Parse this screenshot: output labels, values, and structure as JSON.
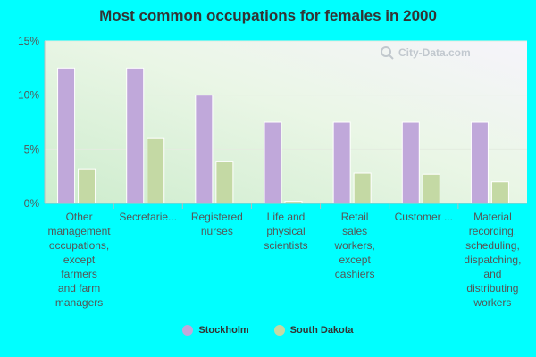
{
  "chart_data": {
    "type": "bar",
    "title": "Most common occupations for females in 2000",
    "categories": [
      "Other management occupations, except farmers and farm managers",
      "Secretarie...",
      "Registered nurses",
      "Life and physical scientists",
      "Retail sales workers, except cashiers",
      "Customer ...",
      "Material recording, scheduling, dispatching, and distributing workers"
    ],
    "category_lines": [
      [
        "Other",
        "management",
        "occupations,",
        "except",
        "farmers",
        "and farm",
        "managers"
      ],
      [
        "Secretarie..."
      ],
      [
        "Registered",
        "nurses"
      ],
      [
        "Life and",
        "physical",
        "scientists"
      ],
      [
        "Retail",
        "sales",
        "workers,",
        "except",
        "cashiers"
      ],
      [
        "Customer ..."
      ],
      [
        "Material",
        "recording,",
        "scheduling,",
        "dispatching,",
        "and",
        "distributing",
        "workers"
      ]
    ],
    "series": [
      {
        "name": "Stockholm",
        "color": "#c0a8da",
        "values": [
          12.5,
          12.5,
          10.0,
          7.5,
          7.5,
          7.5,
          7.5
        ]
      },
      {
        "name": "South Dakota",
        "color": "#c4d9a4",
        "values": [
          3.2,
          6.0,
          3.9,
          0.2,
          2.8,
          2.7,
          2.0
        ]
      }
    ],
    "yticks": [
      "0%",
      "5%",
      "10%",
      "15%"
    ],
    "ylim": [
      0,
      15
    ],
    "grid": true,
    "legend_position": "bottom"
  },
  "watermark_icon": "search-icon",
  "watermark_text": "City-Data.com"
}
